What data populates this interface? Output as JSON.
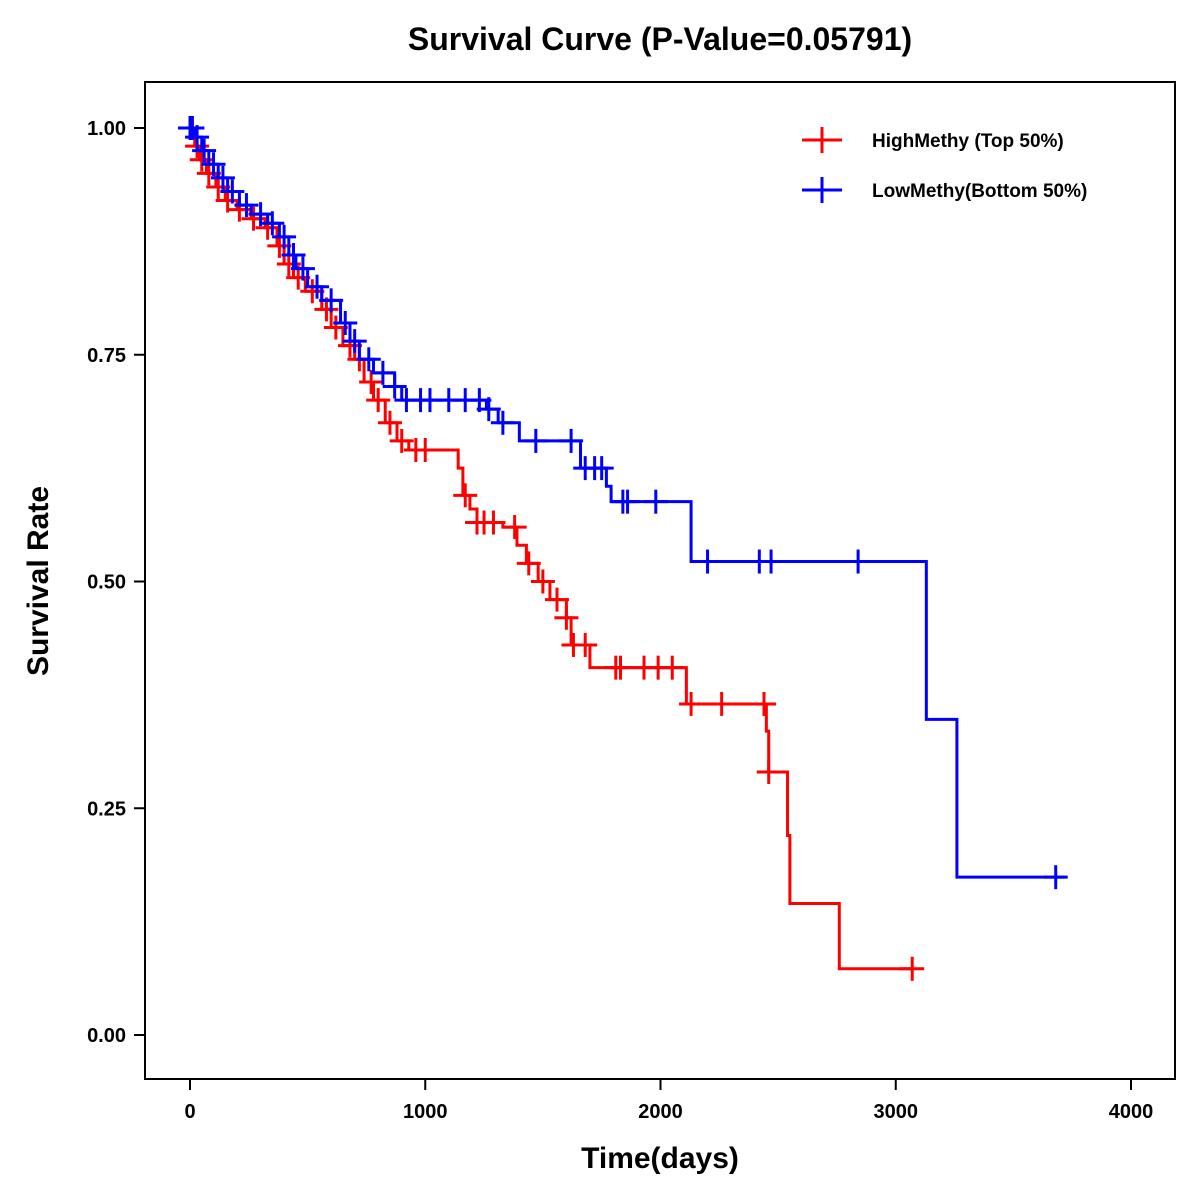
{
  "chart_data": {
    "type": "line",
    "subtype": "kaplan-meier step",
    "title": "Survival Curve (P-Value=0.05791)",
    "xlabel": "Time(days)",
    "ylabel": "Survival Rate",
    "xlim": [
      -200,
      4150
    ],
    "ylim": [
      -0.05,
      1.05
    ],
    "xticks": [
      0,
      1000,
      2000,
      3000,
      4000
    ],
    "xtick_labels": [
      "0",
      "1000",
      "2000",
      "3000",
      "4000"
    ],
    "yticks": [
      0,
      0.25,
      0.5,
      0.75,
      1.0
    ],
    "ytick_labels": [
      "0.00",
      "0.25",
      "0.50",
      "0.75",
      "1.00"
    ],
    "grid": false,
    "legend_position": "top-right",
    "series": [
      {
        "name": "HighMethy (Top 50%)",
        "color": "#ff0000",
        "steps": [
          [
            0,
            1.0
          ],
          [
            20,
            0.98
          ],
          [
            40,
            0.965
          ],
          [
            70,
            0.95
          ],
          [
            110,
            0.935
          ],
          [
            150,
            0.92
          ],
          [
            200,
            0.91
          ],
          [
            260,
            0.9
          ],
          [
            320,
            0.89
          ],
          [
            370,
            0.87
          ],
          [
            400,
            0.85
          ],
          [
            440,
            0.835
          ],
          [
            490,
            0.82
          ],
          [
            560,
            0.8
          ],
          [
            600,
            0.78
          ],
          [
            650,
            0.76
          ],
          [
            700,
            0.745
          ],
          [
            740,
            0.72
          ],
          [
            780,
            0.7
          ],
          [
            830,
            0.675
          ],
          [
            880,
            0.655
          ],
          [
            930,
            0.645
          ],
          [
            1140,
            0.625
          ],
          [
            1160,
            0.595
          ],
          [
            1190,
            0.58
          ],
          [
            1220,
            0.565
          ],
          [
            1330,
            0.56
          ],
          [
            1390,
            0.54
          ],
          [
            1430,
            0.52
          ],
          [
            1480,
            0.5
          ],
          [
            1530,
            0.48
          ],
          [
            1600,
            0.46
          ],
          [
            1620,
            0.43
          ],
          [
            1700,
            0.405
          ],
          [
            2110,
            0.365
          ],
          [
            2450,
            0.335
          ],
          [
            2460,
            0.29
          ],
          [
            2540,
            0.22
          ],
          [
            2550,
            0.145
          ],
          [
            2760,
            0.073
          ],
          [
            3080,
            0.073
          ]
        ],
        "censor_times": [
          10,
          30,
          50,
          80,
          120,
          160,
          210,
          270,
          330,
          380,
          420,
          460,
          520,
          580,
          620,
          680,
          720,
          770,
          800,
          850,
          900,
          960,
          1000,
          1170,
          1220,
          1250,
          1290,
          1380,
          1440,
          1500,
          1560,
          1600,
          1630,
          1680,
          1810,
          1830,
          1930,
          1990,
          2050,
          2130,
          2260,
          2440,
          2460,
          3070
        ]
      },
      {
        "name": "LowMethy(Bottom 50%)",
        "color": "#0000ff",
        "steps": [
          [
            0,
            1.0
          ],
          [
            20,
            0.99
          ],
          [
            50,
            0.975
          ],
          [
            80,
            0.96
          ],
          [
            120,
            0.945
          ],
          [
            160,
            0.93
          ],
          [
            210,
            0.915
          ],
          [
            260,
            0.905
          ],
          [
            330,
            0.895
          ],
          [
            380,
            0.88
          ],
          [
            420,
            0.86
          ],
          [
            450,
            0.845
          ],
          [
            500,
            0.825
          ],
          [
            560,
            0.81
          ],
          [
            640,
            0.785
          ],
          [
            680,
            0.765
          ],
          [
            720,
            0.745
          ],
          [
            780,
            0.73
          ],
          [
            870,
            0.715
          ],
          [
            900,
            0.7
          ],
          [
            1260,
            0.69
          ],
          [
            1310,
            0.675
          ],
          [
            1400,
            0.655
          ],
          [
            1660,
            0.625
          ],
          [
            1770,
            0.605
          ],
          [
            1790,
            0.588
          ],
          [
            2130,
            0.522
          ],
          [
            3130,
            0.348
          ],
          [
            3260,
            0.174
          ],
          [
            3720,
            0.174
          ]
        ],
        "censor_times": [
          0,
          10,
          30,
          60,
          100,
          140,
          180,
          240,
          300,
          350,
          400,
          440,
          480,
          540,
          600,
          660,
          700,
          760,
          820,
          870,
          920,
          980,
          1020,
          1100,
          1170,
          1230,
          1270,
          1330,
          1470,
          1620,
          1680,
          1720,
          1750,
          1840,
          1860,
          1980,
          2200,
          2420,
          2470,
          2840,
          3680
        ]
      }
    ]
  }
}
